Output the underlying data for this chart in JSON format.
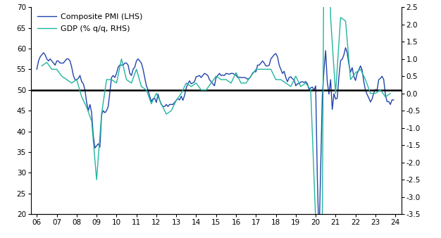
{
  "pmi_color": "#2244aa",
  "gdp_color": "#22b5a0",
  "legend_label_pmi": "Composite PMI (LHS)",
  "legend_label_gdp": "GDP (% q/q, RHS)",
  "ylim_left": [
    20,
    70
  ],
  "ylim_right": [
    -3.5,
    2.5
  ],
  "background_color": "#ffffff",
  "pmi_x": [
    2006.0,
    2006.083,
    2006.167,
    2006.25,
    2006.333,
    2006.417,
    2006.5,
    2006.583,
    2006.667,
    2006.75,
    2006.833,
    2006.917,
    2007.0,
    2007.083,
    2007.167,
    2007.25,
    2007.333,
    2007.417,
    2007.5,
    2007.583,
    2007.667,
    2007.75,
    2007.833,
    2007.917,
    2008.0,
    2008.083,
    2008.167,
    2008.25,
    2008.333,
    2008.417,
    2008.5,
    2008.583,
    2008.667,
    2008.75,
    2008.833,
    2008.917,
    2009.0,
    2009.083,
    2009.167,
    2009.25,
    2009.333,
    2009.417,
    2009.5,
    2009.583,
    2009.667,
    2009.75,
    2009.833,
    2009.917,
    2010.0,
    2010.083,
    2010.167,
    2010.25,
    2010.333,
    2010.417,
    2010.5,
    2010.583,
    2010.667,
    2010.75,
    2010.833,
    2010.917,
    2011.0,
    2011.083,
    2011.167,
    2011.25,
    2011.333,
    2011.417,
    2011.5,
    2011.583,
    2011.667,
    2011.75,
    2011.833,
    2011.917,
    2012.0,
    2012.083,
    2012.167,
    2012.25,
    2012.333,
    2012.417,
    2012.5,
    2012.583,
    2012.667,
    2012.75,
    2012.833,
    2012.917,
    2013.0,
    2013.083,
    2013.167,
    2013.25,
    2013.333,
    2013.417,
    2013.5,
    2013.583,
    2013.667,
    2013.75,
    2013.833,
    2013.917,
    2014.0,
    2014.083,
    2014.167,
    2014.25,
    2014.333,
    2014.417,
    2014.5,
    2014.583,
    2014.667,
    2014.75,
    2014.833,
    2014.917,
    2015.0,
    2015.083,
    2015.167,
    2015.25,
    2015.333,
    2015.417,
    2015.5,
    2015.583,
    2015.667,
    2015.75,
    2015.833,
    2015.917,
    2016.0,
    2016.083,
    2016.167,
    2016.25,
    2016.333,
    2016.417,
    2016.5,
    2016.583,
    2016.667,
    2016.75,
    2016.833,
    2016.917,
    2017.0,
    2017.083,
    2017.167,
    2017.25,
    2017.333,
    2017.417,
    2017.5,
    2017.583,
    2017.667,
    2017.75,
    2017.833,
    2017.917,
    2018.0,
    2018.083,
    2018.167,
    2018.25,
    2018.333,
    2018.417,
    2018.5,
    2018.583,
    2018.667,
    2018.75,
    2018.833,
    2018.917,
    2019.0,
    2019.083,
    2019.167,
    2019.25,
    2019.333,
    2019.417,
    2019.5,
    2019.583,
    2019.667,
    2019.75,
    2019.833,
    2019.917,
    2020.0,
    2020.083,
    2020.167,
    2020.25,
    2020.333,
    2020.417,
    2020.5,
    2020.583,
    2020.667,
    2020.75,
    2020.833,
    2020.917,
    2021.0,
    2021.083,
    2021.167,
    2021.25,
    2021.333,
    2021.417,
    2021.5,
    2021.583,
    2021.667,
    2021.75,
    2021.833,
    2021.917,
    2022.0,
    2022.083,
    2022.167,
    2022.25,
    2022.333,
    2022.417,
    2022.5,
    2022.583,
    2022.667,
    2022.75,
    2022.833,
    2022.917,
    2023.0,
    2023.083,
    2023.167,
    2023.25,
    2023.333,
    2023.417,
    2023.5,
    2023.583,
    2023.667,
    2023.75,
    2023.833,
    2023.917
  ],
  "pmi_y": [
    55.0,
    57.0,
    58.0,
    58.5,
    59.0,
    58.5,
    57.5,
    57.0,
    57.5,
    57.0,
    56.5,
    56.0,
    57.0,
    57.0,
    56.5,
    56.5,
    56.5,
    57.0,
    57.5,
    57.5,
    57.0,
    55.5,
    53.5,
    52.5,
    52.5,
    52.8,
    53.5,
    52.0,
    51.5,
    50.0,
    47.0,
    45.0,
    46.5,
    44.5,
    39.0,
    36.0,
    36.5,
    37.0,
    36.2,
    44.0,
    45.0,
    44.5,
    45.0,
    46.0,
    49.5,
    53.0,
    53.5,
    53.0,
    54.0,
    55.5,
    56.0,
    56.0,
    56.0,
    56.5,
    56.5,
    56.0,
    54.0,
    53.5,
    55.0,
    55.5,
    57.0,
    57.5,
    57.0,
    56.5,
    55.0,
    53.0,
    51.0,
    50.0,
    48.5,
    47.2,
    47.9,
    48.0,
    47.0,
    49.0,
    47.5,
    46.5,
    46.0,
    46.0,
    46.5,
    46.0,
    46.5,
    46.5,
    46.5,
    47.0,
    47.5,
    47.9,
    47.6,
    48.5,
    47.5,
    48.7,
    50.5,
    51.5,
    52.2,
    51.5,
    51.7,
    52.0,
    53.2,
    53.3,
    53.5,
    53.0,
    53.5,
    54.0,
    53.8,
    53.5,
    52.5,
    52.0,
    51.5,
    51.0,
    53.0,
    53.5,
    54.0,
    53.5,
    53.6,
    53.5,
    54.0,
    53.9,
    53.8,
    54.0,
    54.0,
    53.8,
    53.6,
    53.0,
    53.1,
    53.0,
    53.0,
    53.0,
    52.9,
    52.6,
    52.8,
    53.3,
    54.1,
    54.4,
    54.4,
    56.0,
    56.0,
    56.5,
    57.0,
    56.5,
    55.8,
    55.8,
    56.0,
    57.5,
    58.0,
    58.5,
    58.8,
    58.0,
    56.0,
    55.0,
    54.0,
    54.5,
    53.0,
    52.0,
    53.0,
    53.2,
    52.7,
    52.5,
    51.0,
    51.5,
    51.5,
    51.9,
    52.0,
    51.8,
    52.0,
    51.5,
    50.1,
    50.5,
    50.7,
    49.9,
    51.0,
    29.0,
    13.5,
    31.0,
    48.5,
    54.8,
    59.5,
    51.9,
    49.0,
    52.5,
    45.3,
    49.1,
    47.8,
    48.0,
    53.2,
    57.1,
    57.4,
    58.5,
    60.2,
    59.0,
    56.2,
    54.3,
    55.4,
    53.3,
    52.3,
    54.0,
    54.9,
    55.8,
    54.8,
    52.0,
    49.9,
    48.9,
    48.1,
    47.1,
    47.8,
    49.3,
    50.1,
    50.0,
    52.5,
    52.8,
    53.3,
    52.5,
    48.9,
    47.2,
    47.2,
    46.5,
    47.6,
    47.6
  ],
  "gdp_x": [
    2006.25,
    2006.5,
    2006.75,
    2007.0,
    2007.25,
    2007.5,
    2007.75,
    2008.0,
    2008.25,
    2008.5,
    2008.75,
    2009.0,
    2009.25,
    2009.5,
    2009.75,
    2010.0,
    2010.25,
    2010.5,
    2010.75,
    2011.0,
    2011.25,
    2011.5,
    2011.75,
    2012.0,
    2012.25,
    2012.5,
    2012.75,
    2013.0,
    2013.25,
    2013.5,
    2013.75,
    2014.0,
    2014.25,
    2014.5,
    2014.75,
    2015.0,
    2015.25,
    2015.5,
    2015.75,
    2016.0,
    2016.25,
    2016.5,
    2016.75,
    2017.0,
    2017.25,
    2017.5,
    2017.75,
    2018.0,
    2018.25,
    2018.5,
    2018.75,
    2019.0,
    2019.25,
    2019.5,
    2019.75,
    2020.0,
    2020.25,
    2020.5,
    2020.75,
    2021.0,
    2021.25,
    2021.5,
    2021.75,
    2022.0,
    2022.25,
    2022.5,
    2022.75,
    2023.0,
    2023.25,
    2023.5,
    2023.75
  ],
  "gdp_y": [
    0.8,
    0.9,
    0.7,
    0.7,
    0.5,
    0.4,
    0.3,
    0.4,
    -0.1,
    -0.4,
    -0.8,
    -2.5,
    -0.6,
    0.4,
    0.4,
    0.3,
    1.0,
    0.4,
    0.3,
    0.7,
    0.2,
    0.1,
    -0.3,
    0.0,
    -0.3,
    -0.6,
    -0.5,
    -0.2,
    0.0,
    0.3,
    0.2,
    0.3,
    0.1,
    0.1,
    0.3,
    0.5,
    0.4,
    0.4,
    0.3,
    0.6,
    0.3,
    0.3,
    0.5,
    0.7,
    0.7,
    0.7,
    0.7,
    0.4,
    0.4,
    0.3,
    0.2,
    0.5,
    0.2,
    0.3,
    0.1,
    -3.7,
    -11.4,
    12.4,
    2.2,
    0.0,
    2.2,
    2.1,
    0.4,
    0.6,
    0.7,
    0.4,
    0.0,
    0.0,
    0.1,
    -0.1,
    0.0
  ],
  "xticks": [
    2006,
    2007,
    2008,
    2009,
    2010,
    2011,
    2012,
    2013,
    2014,
    2015,
    2016,
    2017,
    2018,
    2019,
    2020,
    2021,
    2022,
    2023,
    2024
  ],
  "xticklabels": [
    "06",
    "07",
    "08",
    "09",
    "10",
    "11",
    "12",
    "13",
    "14",
    "15",
    "16",
    "17",
    "18",
    "19",
    "20",
    "21",
    "22",
    "23",
    "24"
  ]
}
